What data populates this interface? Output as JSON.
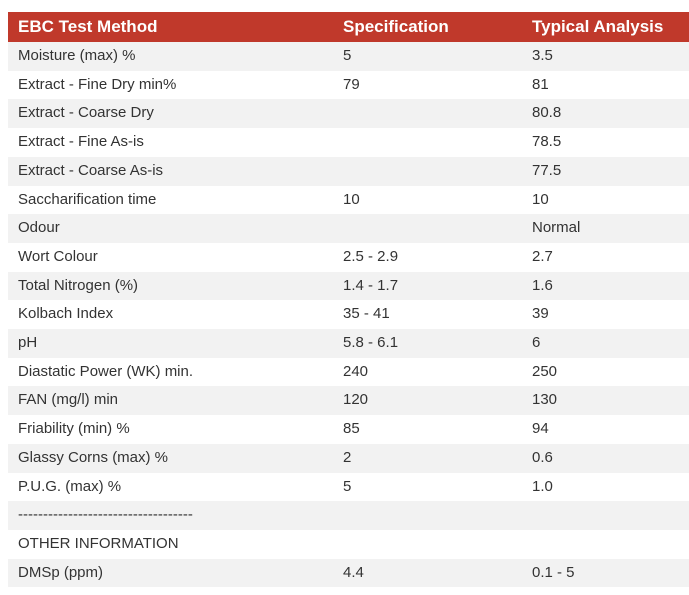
{
  "table": {
    "headers": [
      "EBC Test Method",
      "Specification",
      "Typical Analysis"
    ],
    "rows": [
      [
        "Moisture (max) %",
        "5",
        "3.5"
      ],
      [
        "Extract - Fine Dry min%",
        "79",
        "81"
      ],
      [
        "Extract - Coarse Dry",
        "",
        "80.8"
      ],
      [
        "Extract - Fine As-is",
        "",
        "78.5"
      ],
      [
        "Extract - Coarse As-is",
        "",
        "77.5"
      ],
      [
        "Saccharification time",
        "10",
        "10"
      ],
      [
        "Odour",
        "",
        "Normal"
      ],
      [
        "Wort Colour",
        "2.5 - 2.9",
        "2.7"
      ],
      [
        "Total Nitrogen (%)",
        "1.4 - 1.7",
        "1.6"
      ],
      [
        "Kolbach Index",
        "35 - 41",
        "39"
      ],
      [
        "pH",
        "5.8 - 6.1",
        "6"
      ],
      [
        "Diastatic Power (WK) min.",
        "240",
        "250"
      ],
      [
        "FAN (mg/l) min",
        "120",
        "130"
      ],
      [
        "Friability (min) %",
        "85",
        "94"
      ],
      [
        "Glassy Corns (max) %",
        "2",
        "0.6"
      ],
      [
        "P.U.G. (max) %",
        "5",
        "1.0"
      ],
      [
        "-----------------------------------",
        "",
        ""
      ],
      [
        "OTHER INFORMATION",
        "",
        ""
      ],
      [
        "DMSp (ppm)",
        "4.4",
        "0.1 - 5"
      ]
    ]
  },
  "colors": {
    "header_bg": "#c0392b",
    "header_text": "#ffffff",
    "row_alt_bg": "#f2f2f2",
    "text": "#333333"
  }
}
